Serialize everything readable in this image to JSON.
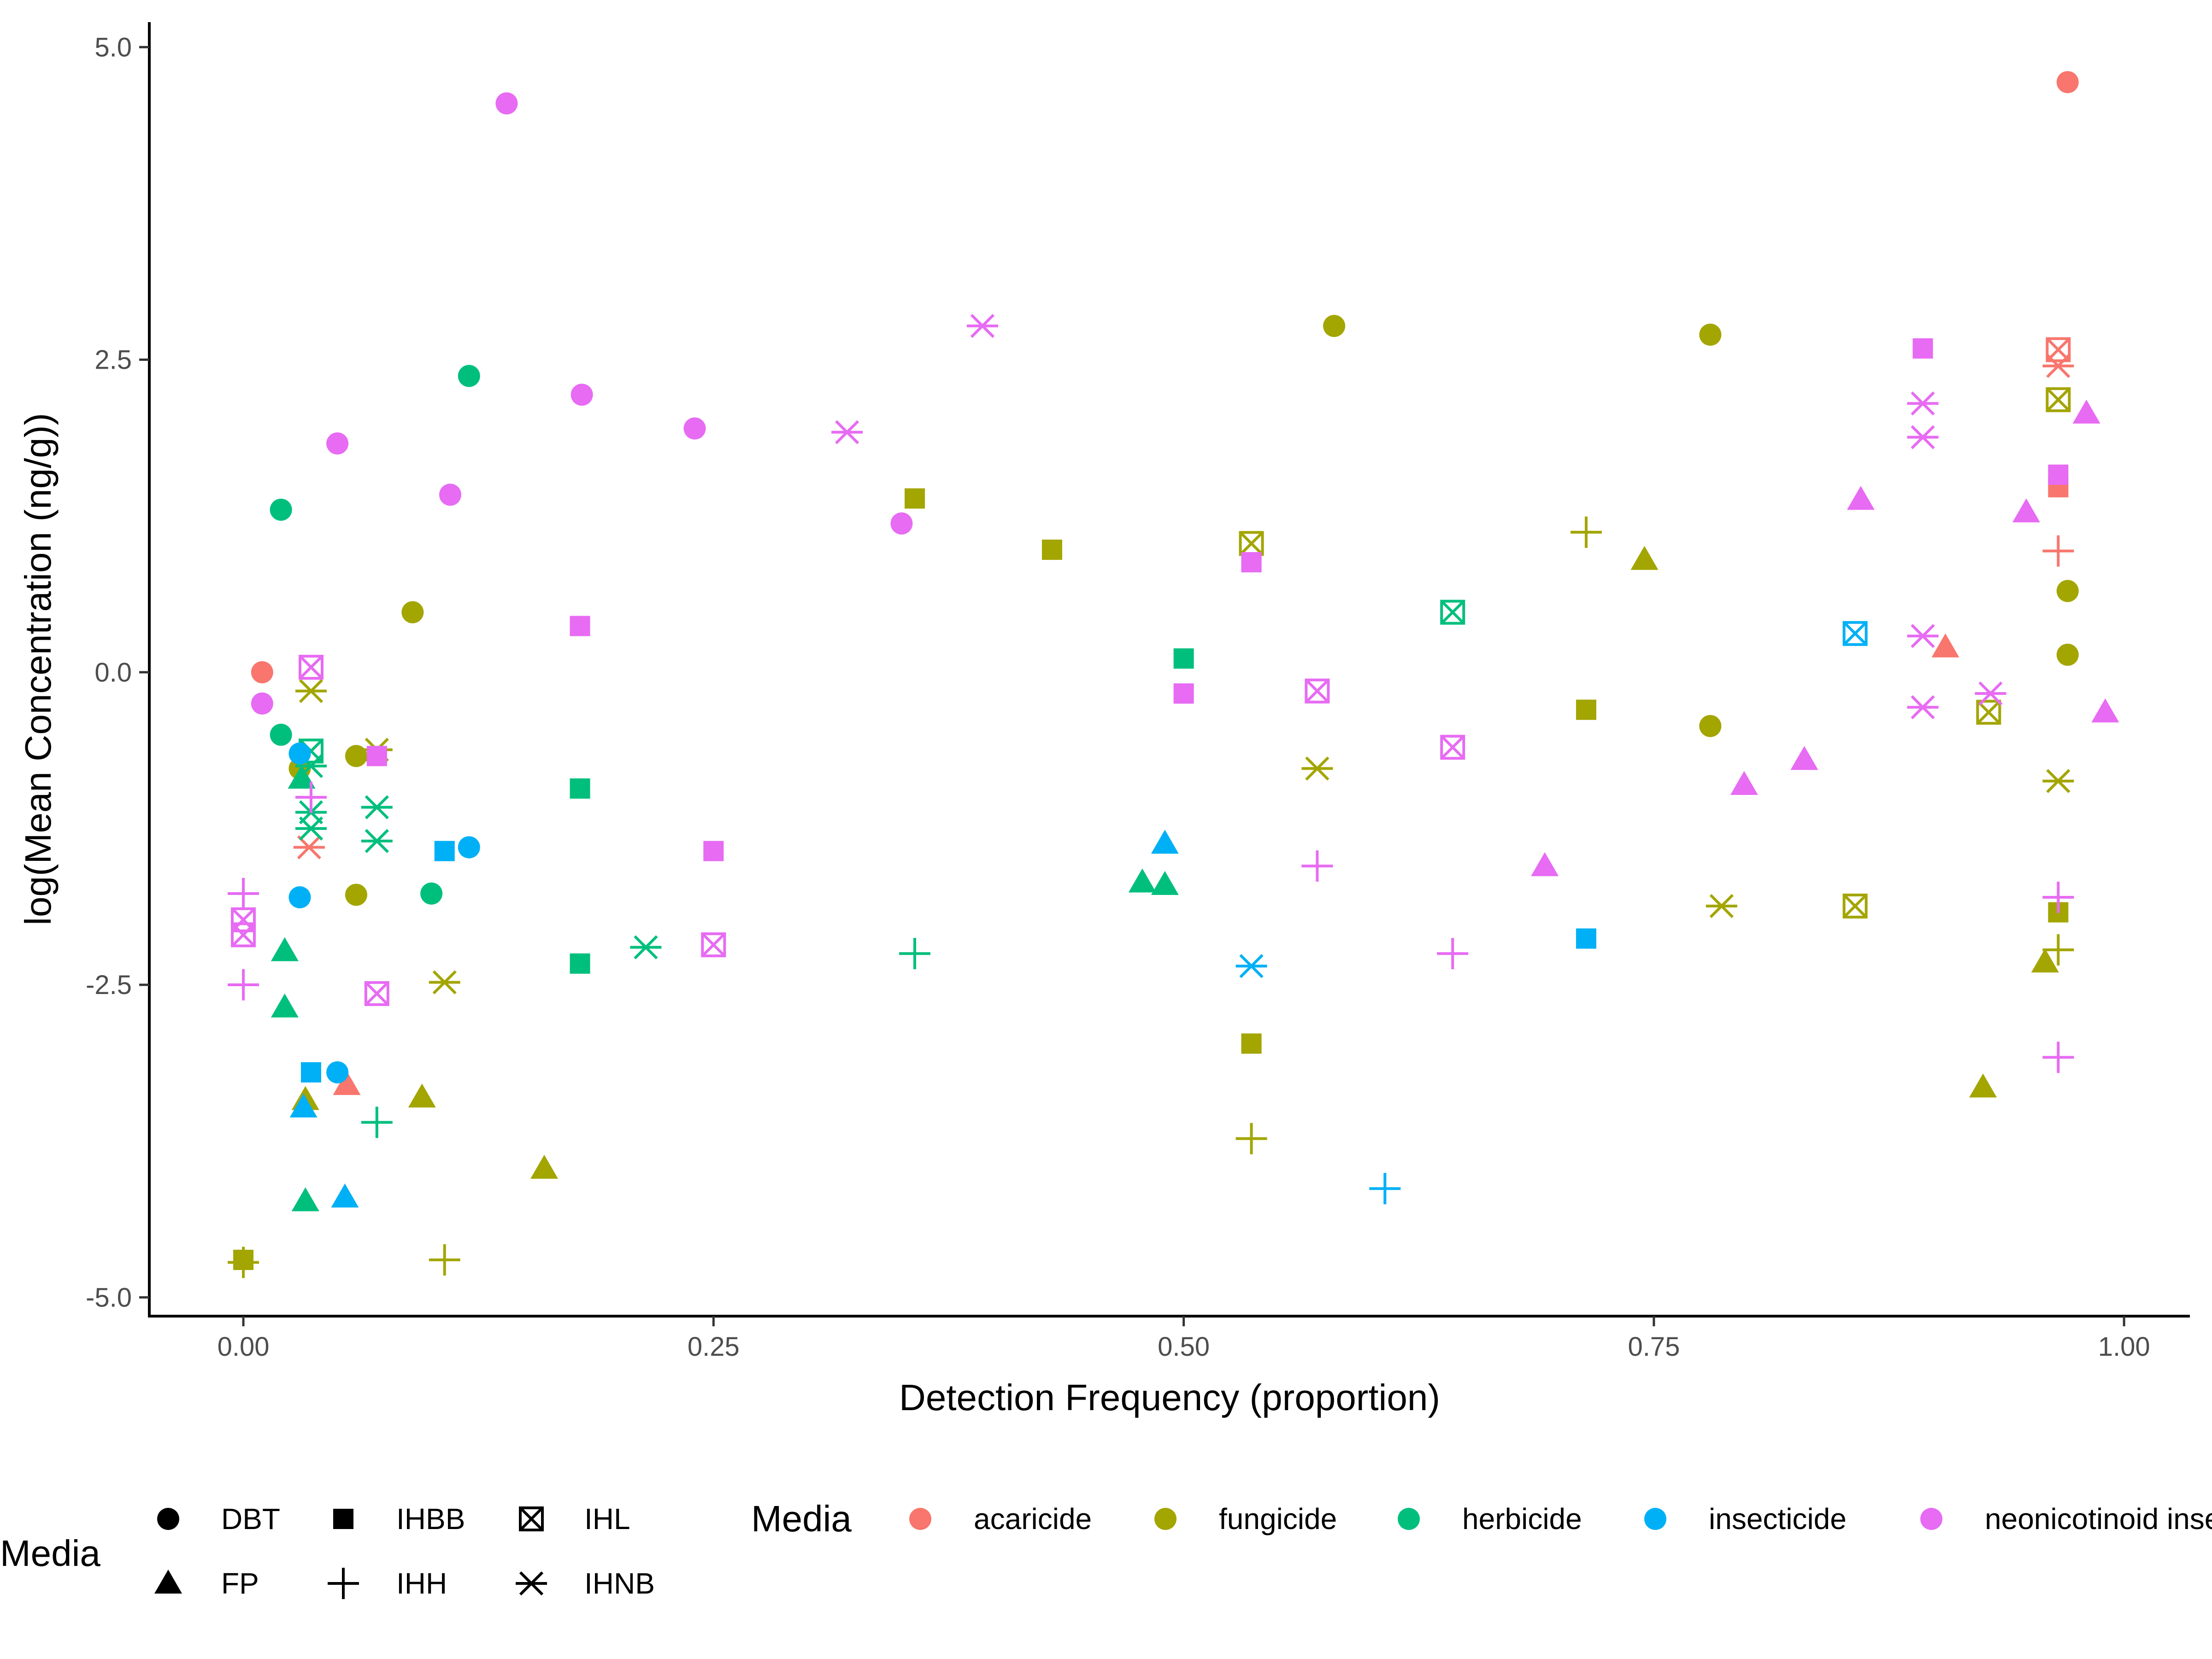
{
  "chart_data": {
    "type": "scatter",
    "xlabel": "Detection Frequency (proportion)",
    "ylabel": "log(Mean Concentration (ng/g))",
    "xlim": [
      -0.05,
      1.035
    ],
    "ylim": [
      -5.15,
      5.2
    ],
    "x_ticks": [
      0.0,
      0.25,
      0.5,
      0.75,
      1.0
    ],
    "x_tick_labels": [
      "0.00",
      "0.25",
      "0.50",
      "0.75",
      "1.00"
    ],
    "y_ticks": [
      -5.0,
      -2.5,
      0.0,
      2.5,
      5.0
    ],
    "y_tick_labels": [
      "-5.0",
      "-2.5",
      "0.0",
      "2.5",
      "5.0"
    ],
    "grid": false,
    "legend_position": "bottom",
    "shape_legend": {
      "title": "Media",
      "entries": [
        {
          "key": "DBT",
          "label": "DBT",
          "shape": "circle"
        },
        {
          "key": "IHBB",
          "label": "IHBB",
          "shape": "square"
        },
        {
          "key": "IHL",
          "label": "IHL",
          "shape": "boxed-x"
        },
        {
          "key": "FP",
          "label": "FP",
          "shape": "triangle"
        },
        {
          "key": "IHH",
          "label": "IHH",
          "shape": "plus"
        },
        {
          "key": "IHNB",
          "label": "IHNB",
          "shape": "asterisk"
        }
      ]
    },
    "color_legend": {
      "title": "Media",
      "entries": [
        {
          "key": "acaricide",
          "label": "acaricide",
          "color": "#F8766D"
        },
        {
          "key": "fungicide",
          "label": "fungicide",
          "color": "#A3A500"
        },
        {
          "key": "herbicide",
          "label": "herbicide",
          "color": "#00BF7D"
        },
        {
          "key": "insecticide",
          "label": "insecticide",
          "color": "#00B0F6"
        },
        {
          "key": "neonicotinoid",
          "label": "neonicotinoid insecticide",
          "color": "#E76BF3"
        }
      ]
    },
    "points": [
      {
        "x": 0.01,
        "y": 0.0,
        "m": "DBT",
        "c": "acaricide"
      },
      {
        "x": 0.97,
        "y": 4.72,
        "m": "DBT",
        "c": "acaricide"
      },
      {
        "x": 0.965,
        "y": 1.48,
        "m": "IHBB",
        "c": "acaricide"
      },
      {
        "x": 0.965,
        "y": 2.58,
        "m": "IHL",
        "c": "acaricide"
      },
      {
        "x": 0.055,
        "y": -3.3,
        "m": "FP",
        "c": "acaricide"
      },
      {
        "x": 0.905,
        "y": 0.2,
        "m": "FP",
        "c": "acaricide"
      },
      {
        "x": 0.965,
        "y": 0.97,
        "m": "IHH",
        "c": "acaricide"
      },
      {
        "x": 0.035,
        "y": -1.4,
        "m": "IHNB",
        "c": "acaricide"
      },
      {
        "x": 0.965,
        "y": 2.45,
        "m": "IHNB",
        "c": "acaricide"
      },
      {
        "x": 0.09,
        "y": 0.48,
        "m": "DBT",
        "c": "fungicide"
      },
      {
        "x": 0.03,
        "y": -0.77,
        "m": "DBT",
        "c": "fungicide"
      },
      {
        "x": 0.06,
        "y": -0.67,
        "m": "DBT",
        "c": "fungicide"
      },
      {
        "x": 0.06,
        "y": -1.78,
        "m": "DBT",
        "c": "fungicide"
      },
      {
        "x": 0.58,
        "y": 2.77,
        "m": "DBT",
        "c": "fungicide"
      },
      {
        "x": 0.78,
        "y": 2.7,
        "m": "DBT",
        "c": "fungicide"
      },
      {
        "x": 0.78,
        "y": -0.43,
        "m": "DBT",
        "c": "fungicide"
      },
      {
        "x": 0.97,
        "y": 0.65,
        "m": "DBT",
        "c": "fungicide"
      },
      {
        "x": 0.97,
        "y": 0.14,
        "m": "DBT",
        "c": "fungicide"
      },
      {
        "x": 0.0,
        "y": -4.7,
        "m": "IHBB",
        "c": "fungicide"
      },
      {
        "x": 0.357,
        "y": 1.39,
        "m": "IHBB",
        "c": "fungicide"
      },
      {
        "x": 0.43,
        "y": 0.98,
        "m": "IHBB",
        "c": "fungicide"
      },
      {
        "x": 0.536,
        "y": -2.97,
        "m": "IHBB",
        "c": "fungicide"
      },
      {
        "x": 0.714,
        "y": -0.3,
        "m": "IHBB",
        "c": "fungicide"
      },
      {
        "x": 0.965,
        "y": -1.92,
        "m": "IHBB",
        "c": "fungicide"
      },
      {
        "x": 0.536,
        "y": 1.03,
        "m": "IHL",
        "c": "fungicide"
      },
      {
        "x": 0.857,
        "y": -1.87,
        "m": "IHL",
        "c": "fungicide"
      },
      {
        "x": 0.928,
        "y": -0.32,
        "m": "IHL",
        "c": "fungicide"
      },
      {
        "x": 0.965,
        "y": 2.18,
        "m": "IHL",
        "c": "fungicide"
      },
      {
        "x": 0.033,
        "y": -3.42,
        "m": "FP",
        "c": "fungicide"
      },
      {
        "x": 0.095,
        "y": -3.4,
        "m": "FP",
        "c": "fungicide"
      },
      {
        "x": 0.16,
        "y": -3.97,
        "m": "FP",
        "c": "fungicide"
      },
      {
        "x": 0.745,
        "y": 0.9,
        "m": "FP",
        "c": "fungicide"
      },
      {
        "x": 0.925,
        "y": -3.32,
        "m": "FP",
        "c": "fungicide"
      },
      {
        "x": 0.958,
        "y": -2.32,
        "m": "FP",
        "c": "fungicide"
      },
      {
        "x": 0.0,
        "y": -4.72,
        "m": "IHH",
        "c": "fungicide"
      },
      {
        "x": 0.107,
        "y": -4.7,
        "m": "IHH",
        "c": "fungicide"
      },
      {
        "x": 0.536,
        "y": -3.73,
        "m": "IHH",
        "c": "fungicide"
      },
      {
        "x": 0.714,
        "y": 1.12,
        "m": "IHH",
        "c": "fungicide"
      },
      {
        "x": 0.965,
        "y": -2.22,
        "m": "IHH",
        "c": "fungicide"
      },
      {
        "x": 0.036,
        "y": -0.15,
        "m": "IHNB",
        "c": "fungicide"
      },
      {
        "x": 0.071,
        "y": -0.62,
        "m": "IHNB",
        "c": "fungicide"
      },
      {
        "x": 0.107,
        "y": -2.48,
        "m": "IHNB",
        "c": "fungicide"
      },
      {
        "x": 0.571,
        "y": -0.77,
        "m": "IHNB",
        "c": "fungicide"
      },
      {
        "x": 0.786,
        "y": -1.87,
        "m": "IHNB",
        "c": "fungicide"
      },
      {
        "x": 0.965,
        "y": -0.87,
        "m": "IHNB",
        "c": "fungicide"
      },
      {
        "x": 0.02,
        "y": 1.3,
        "m": "DBT",
        "c": "herbicide"
      },
      {
        "x": 0.12,
        "y": 2.37,
        "m": "DBT",
        "c": "herbicide"
      },
      {
        "x": 0.02,
        "y": -0.5,
        "m": "DBT",
        "c": "herbicide"
      },
      {
        "x": 0.1,
        "y": -1.77,
        "m": "DBT",
        "c": "herbicide"
      },
      {
        "x": 0.179,
        "y": -0.93,
        "m": "IHBB",
        "c": "herbicide"
      },
      {
        "x": 0.179,
        "y": -2.33,
        "m": "IHBB",
        "c": "herbicide"
      },
      {
        "x": 0.5,
        "y": 0.11,
        "m": "IHBB",
        "c": "herbicide"
      },
      {
        "x": 0.036,
        "y": -0.63,
        "m": "IHL",
        "c": "herbicide"
      },
      {
        "x": 0.643,
        "y": 0.48,
        "m": "IHL",
        "c": "herbicide"
      },
      {
        "x": 0.031,
        "y": -0.85,
        "m": "FP",
        "c": "herbicide"
      },
      {
        "x": 0.022,
        "y": -2.23,
        "m": "FP",
        "c": "herbicide"
      },
      {
        "x": 0.022,
        "y": -2.68,
        "m": "FP",
        "c": "herbicide"
      },
      {
        "x": 0.033,
        "y": -4.23,
        "m": "FP",
        "c": "herbicide"
      },
      {
        "x": 0.478,
        "y": -1.68,
        "m": "FP",
        "c": "herbicide"
      },
      {
        "x": 0.49,
        "y": -1.7,
        "m": "FP",
        "c": "herbicide"
      },
      {
        "x": 0.071,
        "y": -3.6,
        "m": "IHH",
        "c": "herbicide"
      },
      {
        "x": 0.357,
        "y": -2.25,
        "m": "IHH",
        "c": "herbicide"
      },
      {
        "x": 0.036,
        "y": -0.75,
        "m": "IHNB",
        "c": "herbicide"
      },
      {
        "x": 0.036,
        "y": -1.12,
        "m": "IHNB",
        "c": "herbicide"
      },
      {
        "x": 0.036,
        "y": -1.25,
        "m": "IHNB",
        "c": "herbicide"
      },
      {
        "x": 0.071,
        "y": -1.08,
        "m": "IHNB",
        "c": "herbicide"
      },
      {
        "x": 0.071,
        "y": -1.35,
        "m": "IHNB",
        "c": "herbicide"
      },
      {
        "x": 0.214,
        "y": -2.2,
        "m": "IHNB",
        "c": "herbicide"
      },
      {
        "x": 0.03,
        "y": -0.65,
        "m": "DBT",
        "c": "insecticide"
      },
      {
        "x": 0.03,
        "y": -1.8,
        "m": "DBT",
        "c": "insecticide"
      },
      {
        "x": 0.12,
        "y": -1.4,
        "m": "DBT",
        "c": "insecticide"
      },
      {
        "x": 0.05,
        "y": -3.2,
        "m": "DBT",
        "c": "insecticide"
      },
      {
        "x": 0.107,
        "y": -1.43,
        "m": "IHBB",
        "c": "insecticide"
      },
      {
        "x": 0.036,
        "y": -3.2,
        "m": "IHBB",
        "c": "insecticide"
      },
      {
        "x": 0.714,
        "y": -2.13,
        "m": "IHBB",
        "c": "insecticide"
      },
      {
        "x": 0.857,
        "y": 0.31,
        "m": "IHL",
        "c": "insecticide"
      },
      {
        "x": 0.032,
        "y": -3.48,
        "m": "FP",
        "c": "insecticide"
      },
      {
        "x": 0.054,
        "y": -4.2,
        "m": "FP",
        "c": "insecticide"
      },
      {
        "x": 0.49,
        "y": -1.37,
        "m": "FP",
        "c": "insecticide"
      },
      {
        "x": 0.607,
        "y": -4.13,
        "m": "IHH",
        "c": "insecticide"
      },
      {
        "x": 0.536,
        "y": -2.35,
        "m": "IHNB",
        "c": "insecticide"
      },
      {
        "x": 0.14,
        "y": 4.55,
        "m": "DBT",
        "c": "neonicotinoid"
      },
      {
        "x": 0.05,
        "y": 1.83,
        "m": "DBT",
        "c": "neonicotinoid"
      },
      {
        "x": 0.11,
        "y": 1.42,
        "m": "DBT",
        "c": "neonicotinoid"
      },
      {
        "x": 0.18,
        "y": 2.22,
        "m": "DBT",
        "c": "neonicotinoid"
      },
      {
        "x": 0.24,
        "y": 1.95,
        "m": "DBT",
        "c": "neonicotinoid"
      },
      {
        "x": 0.35,
        "y": 1.19,
        "m": "DBT",
        "c": "neonicotinoid"
      },
      {
        "x": 0.01,
        "y": -0.25,
        "m": "DBT",
        "c": "neonicotinoid"
      },
      {
        "x": 0.179,
        "y": 0.37,
        "m": "IHBB",
        "c": "neonicotinoid"
      },
      {
        "x": 0.071,
        "y": -0.67,
        "m": "IHBB",
        "c": "neonicotinoid"
      },
      {
        "x": 0.25,
        "y": -1.43,
        "m": "IHBB",
        "c": "neonicotinoid"
      },
      {
        "x": 0.5,
        "y": -0.17,
        "m": "IHBB",
        "c": "neonicotinoid"
      },
      {
        "x": 0.536,
        "y": 0.88,
        "m": "IHBB",
        "c": "neonicotinoid"
      },
      {
        "x": 0.893,
        "y": 2.59,
        "m": "IHBB",
        "c": "neonicotinoid"
      },
      {
        "x": 0.965,
        "y": 1.58,
        "m": "IHBB",
        "c": "neonicotinoid"
      },
      {
        "x": 0.036,
        "y": 0.04,
        "m": "IHL",
        "c": "neonicotinoid"
      },
      {
        "x": 0.0,
        "y": -1.98,
        "m": "IHL",
        "c": "neonicotinoid"
      },
      {
        "x": 0.0,
        "y": -2.1,
        "m": "IHL",
        "c": "neonicotinoid"
      },
      {
        "x": 0.071,
        "y": -2.57,
        "m": "IHL",
        "c": "neonicotinoid"
      },
      {
        "x": 0.25,
        "y": -2.18,
        "m": "IHL",
        "c": "neonicotinoid"
      },
      {
        "x": 0.571,
        "y": -0.15,
        "m": "IHL",
        "c": "neonicotinoid"
      },
      {
        "x": 0.643,
        "y": -0.6,
        "m": "IHL",
        "c": "neonicotinoid"
      },
      {
        "x": 0.692,
        "y": -1.55,
        "m": "FP",
        "c": "neonicotinoid"
      },
      {
        "x": 0.798,
        "y": -0.9,
        "m": "FP",
        "c": "neonicotinoid"
      },
      {
        "x": 0.83,
        "y": -0.7,
        "m": "FP",
        "c": "neonicotinoid"
      },
      {
        "x": 0.86,
        "y": 1.38,
        "m": "FP",
        "c": "neonicotinoid"
      },
      {
        "x": 0.948,
        "y": 1.28,
        "m": "FP",
        "c": "neonicotinoid"
      },
      {
        "x": 0.98,
        "y": 2.07,
        "m": "FP",
        "c": "neonicotinoid"
      },
      {
        "x": 0.99,
        "y": -0.32,
        "m": "FP",
        "c": "neonicotinoid"
      },
      {
        "x": 0.0,
        "y": -1.77,
        "m": "IHH",
        "c": "neonicotinoid"
      },
      {
        "x": 0.0,
        "y": -2.5,
        "m": "IHH",
        "c": "neonicotinoid"
      },
      {
        "x": 0.036,
        "y": -1.0,
        "m": "IHH",
        "c": "neonicotinoid"
      },
      {
        "x": 0.571,
        "y": -1.55,
        "m": "IHH",
        "c": "neonicotinoid"
      },
      {
        "x": 0.643,
        "y": -2.25,
        "m": "IHH",
        "c": "neonicotinoid"
      },
      {
        "x": 0.965,
        "y": -1.8,
        "m": "IHH",
        "c": "neonicotinoid"
      },
      {
        "x": 0.965,
        "y": -3.08,
        "m": "IHH",
        "c": "neonicotinoid"
      },
      {
        "x": 0.393,
        "y": 2.77,
        "m": "IHNB",
        "c": "neonicotinoid"
      },
      {
        "x": 0.321,
        "y": 1.92,
        "m": "IHNB",
        "c": "neonicotinoid"
      },
      {
        "x": 0.893,
        "y": 2.15,
        "m": "IHNB",
        "c": "neonicotinoid"
      },
      {
        "x": 0.893,
        "y": 1.88,
        "m": "IHNB",
        "c": "neonicotinoid"
      },
      {
        "x": 0.893,
        "y": 0.29,
        "m": "IHNB",
        "c": "neonicotinoid"
      },
      {
        "x": 0.893,
        "y": -0.28,
        "m": "IHNB",
        "c": "neonicotinoid"
      },
      {
        "x": 0.929,
        "y": -0.17,
        "m": "IHNB",
        "c": "neonicotinoid"
      }
    ]
  }
}
